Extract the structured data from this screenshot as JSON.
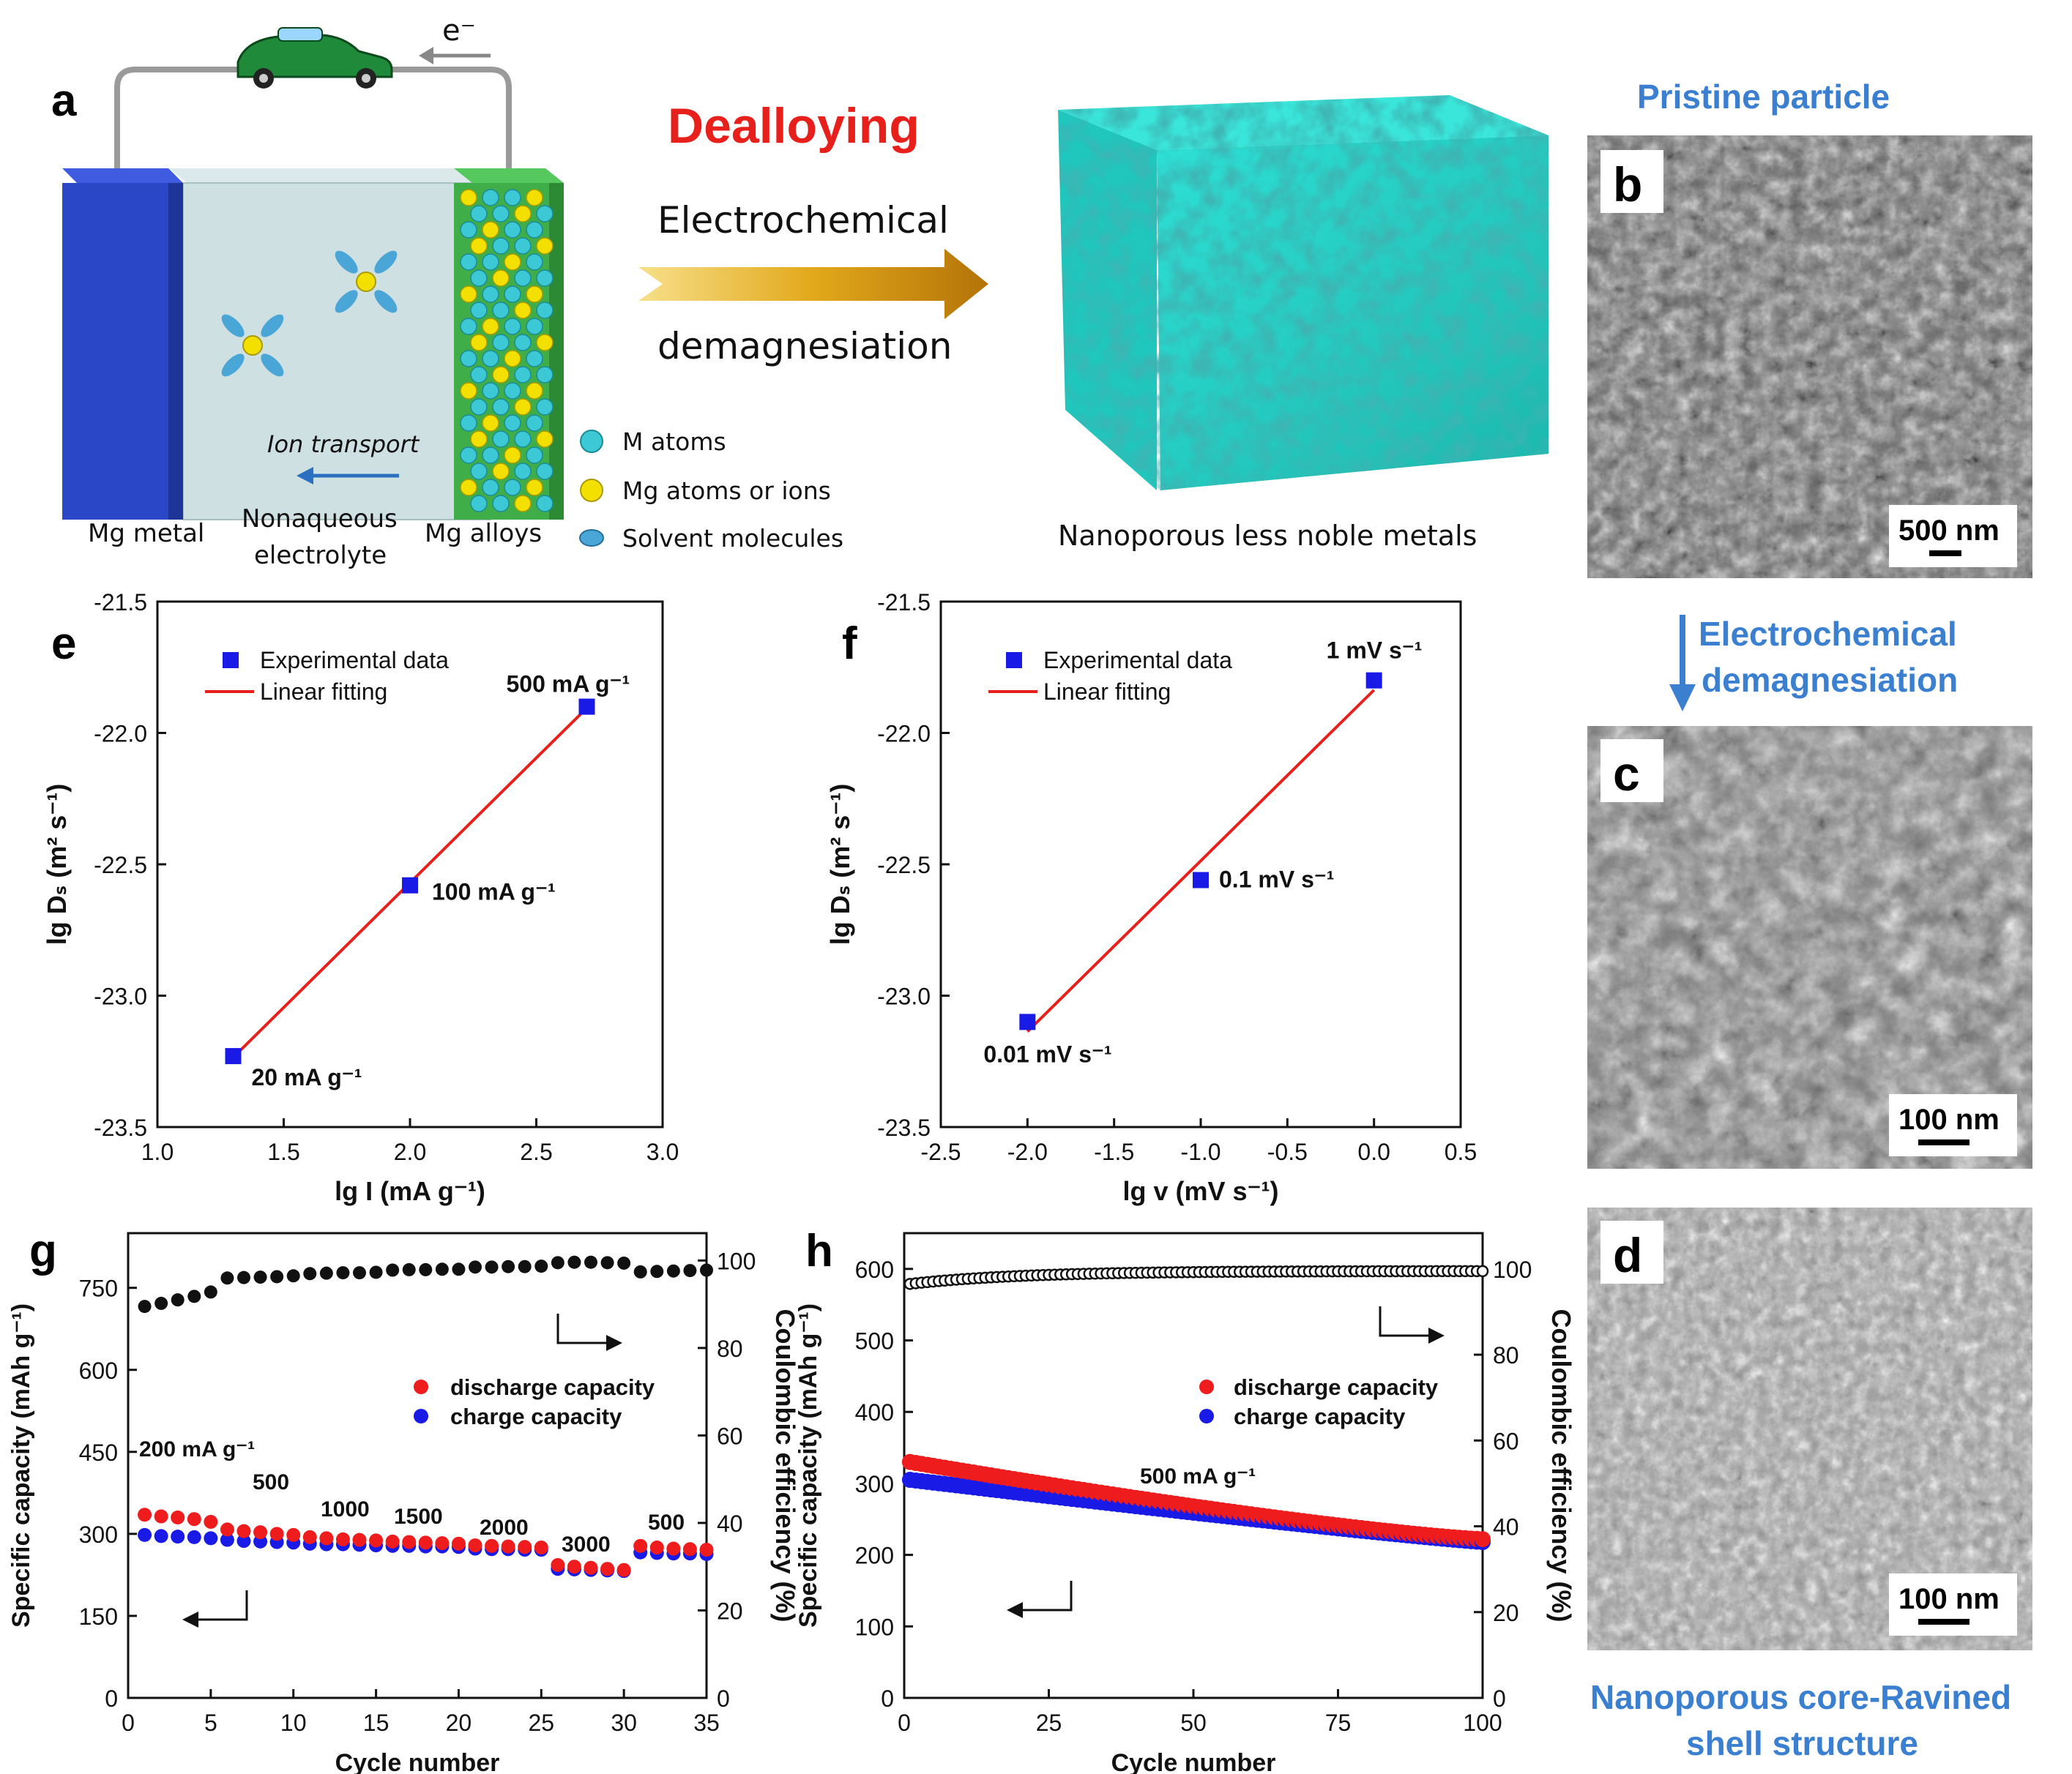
{
  "panel_labels": {
    "a": "a",
    "b": "b",
    "c": "c",
    "d": "d",
    "e": "e",
    "f": "f",
    "g": "g",
    "h": "h"
  },
  "schematic": {
    "electron_label": "e⁻",
    "dealloying_title": "Dealloying",
    "arrow_top": "Electrochemical",
    "arrow_bottom": "demagnesiation",
    "ion_transport": "Ion transport",
    "mg_metal": "Mg metal",
    "electrolyte_line1": "Nonaqueous",
    "electrolyte_line2": "electrolyte",
    "mg_alloys": "Mg alloys",
    "legend": [
      "M atoms",
      "Mg atoms or ions",
      "Solvent molecules"
    ],
    "product_caption": "Nanoporous less noble metals",
    "colors": {
      "mg_metal": "#2a47c8",
      "alloy_green": "#3fae49",
      "m_atom": "#3cc8d4",
      "mg_atom": "#f4e000",
      "solvent": "#4aa6d6",
      "porous": "#27d3c9",
      "dealloy_red": "#e8201c",
      "arrow_gold": "#d79a10"
    }
  },
  "sem": {
    "title_top": "Pristine particle",
    "process_line1": "Electrochemical",
    "process_line2": "demagnesiation",
    "title_bottom_line1": "Nanoporous core-Ravined",
    "title_bottom_line2": "shell structure",
    "scale_b": "500 nm",
    "scale_c": "100 nm",
    "scale_d": "100 nm"
  },
  "chart_data": [
    {
      "panel": "e",
      "type": "scatter",
      "xlabel": "lg I (mA g⁻¹)",
      "ylabel": "lg Dₛ (m² s⁻¹)",
      "xlim": [
        1.0,
        3.0
      ],
      "ylim": [
        -23.5,
        -21.5
      ],
      "xticks": [
        "1.0",
        "1.5",
        "2.0",
        "2.5",
        "3.0"
      ],
      "yticks": [
        "-21.5",
        "-22.0",
        "-22.5",
        "-23.0",
        "-23.5"
      ],
      "legend": [
        "Experimental data",
        "Linear fitting"
      ],
      "points": [
        {
          "x": 1.3,
          "y": -23.23,
          "label": "20 mA g⁻¹"
        },
        {
          "x": 2.0,
          "y": -22.58,
          "label": "100 mA g⁻¹"
        },
        {
          "x": 2.7,
          "y": -21.9,
          "label": "500 mA g⁻¹"
        }
      ]
    },
    {
      "panel": "f",
      "type": "scatter",
      "xlabel": "lg v (mV s⁻¹)",
      "ylabel": "lg Dₛ (m² s⁻¹)",
      "xlim": [
        -2.5,
        0.5
      ],
      "ylim": [
        -23.5,
        -21.5
      ],
      "xticks": [
        "-2.5",
        "-2.0",
        "-1.5",
        "-1.0",
        "-0.5",
        "0.0",
        "0.5"
      ],
      "yticks": [
        "-21.5",
        "-22.0",
        "-22.5",
        "-23.0",
        "-23.5"
      ],
      "legend": [
        "Experimental data",
        "Linear fitting"
      ],
      "points": [
        {
          "x": -2.0,
          "y": -23.1,
          "label": "0.01 mV s⁻¹"
        },
        {
          "x": -1.0,
          "y": -22.56,
          "label": "0.1 mV s⁻¹"
        },
        {
          "x": 0.0,
          "y": -21.8,
          "label": "1 mV s⁻¹"
        }
      ]
    },
    {
      "panel": "g",
      "type": "scatter",
      "xlabel": "Cycle number",
      "ylabel": "Specific capacity (mAh g⁻¹)",
      "y2label": "Coulombic efficiency (%)",
      "xlim": [
        0,
        35
      ],
      "ylim": [
        0,
        850
      ],
      "y2lim": [
        0,
        106.25
      ],
      "xticks": [
        "0",
        "5",
        "10",
        "15",
        "20",
        "25",
        "30",
        "35"
      ],
      "yticks": [
        "0",
        "150",
        "300",
        "450",
        "600",
        "750"
      ],
      "y2ticks": [
        "0",
        "20",
        "40",
        "60",
        "80",
        "100"
      ],
      "legend": [
        "discharge capacity",
        "charge capacity"
      ],
      "rate_labels": [
        "200 mA g⁻¹",
        "500",
        "1000",
        "1500",
        "2000",
        "3000",
        "500"
      ],
      "x": [
        1,
        2,
        3,
        4,
        5,
        6,
        7,
        8,
        9,
        10,
        11,
        12,
        13,
        14,
        15,
        16,
        17,
        18,
        19,
        20,
        21,
        22,
        23,
        24,
        25,
        26,
        27,
        28,
        29,
        30,
        31,
        32,
        33,
        34,
        35
      ],
      "series": [
        {
          "name": "discharge capacity",
          "values": [
            335,
            332,
            330,
            327,
            322,
            308,
            305,
            303,
            300,
            298,
            294,
            292,
            290,
            289,
            288,
            286,
            285,
            284,
            283,
            282,
            279,
            278,
            277,
            276,
            275,
            243,
            240,
            238,
            236,
            234,
            278,
            275,
            273,
            272,
            271
          ]
        },
        {
          "name": "charge capacity",
          "values": [
            298,
            296,
            295,
            294,
            292,
            289,
            287,
            286,
            285,
            284,
            282,
            281,
            281,
            280,
            279,
            278,
            278,
            277,
            277,
            276,
            273,
            272,
            272,
            271,
            271,
            236,
            235,
            234,
            233,
            232,
            266,
            265,
            264,
            264,
            263
          ]
        },
        {
          "name": "coulombic efficiency",
          "values": [
            89.5,
            90.2,
            91.0,
            91.8,
            92.8,
            96.0,
            96.1,
            96.2,
            96.3,
            96.5,
            97.0,
            97.1,
            97.2,
            97.2,
            97.3,
            97.8,
            97.9,
            97.9,
            98.0,
            98.0,
            98.5,
            98.5,
            98.6,
            98.6,
            98.7,
            99.5,
            99.6,
            99.6,
            99.5,
            99.4,
            97.4,
            97.5,
            97.6,
            97.7,
            97.8
          ]
        }
      ]
    },
    {
      "panel": "h",
      "type": "scatter",
      "xlabel": "Cycle number",
      "ylabel": "Specific capacity (mAh g⁻¹)",
      "y2label": "Coulombic efficiency (%)",
      "xlim": [
        0,
        100
      ],
      "ylim": [
        0,
        650
      ],
      "y2lim": [
        0,
        108.33
      ],
      "xticks": [
        "0",
        "25",
        "50",
        "75",
        "100"
      ],
      "yticks": [
        "0",
        "100",
        "200",
        "300",
        "400",
        "500",
        "600"
      ],
      "y2ticks": [
        "0",
        "20",
        "40",
        "60",
        "80",
        "100"
      ],
      "legend": [
        "discharge capacity",
        "charge capacity"
      ],
      "rate_label": "500 mA g⁻¹",
      "series": [
        {
          "name": "discharge capacity",
          "start": 330,
          "end": 222
        },
        {
          "name": "charge capacity",
          "start": 305,
          "end": 218
        },
        {
          "name": "coulombic efficiency",
          "start": 96.5,
          "end": 99.5
        }
      ]
    }
  ]
}
